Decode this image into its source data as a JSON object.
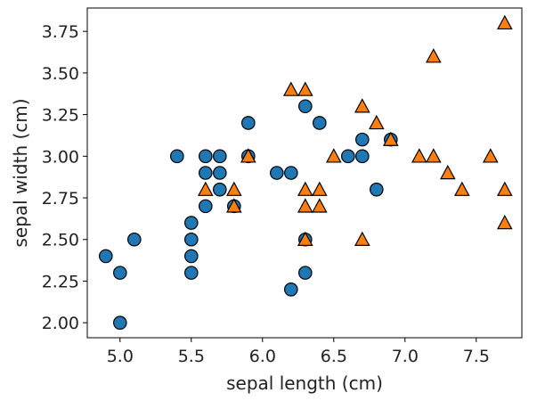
{
  "chart_data": {
    "type": "scatter",
    "title": "",
    "xlabel": "sepal length (cm)",
    "ylabel": "sepal width (cm)",
    "xlim": [
      4.77,
      7.82
    ],
    "ylim": [
      1.91,
      3.89
    ],
    "grid": false,
    "legend": "none",
    "x_ticks": [
      5.0,
      5.5,
      6.0,
      6.5,
      7.0,
      7.5
    ],
    "x_tick_labels": [
      "5.0",
      "5.5",
      "6.0",
      "6.5",
      "7.0",
      "7.5"
    ],
    "y_ticks": [
      2.0,
      2.25,
      2.5,
      2.75,
      3.0,
      3.25,
      3.5,
      3.75
    ],
    "y_tick_labels": [
      "2.00",
      "2.25",
      "2.50",
      "2.75",
      "3.00",
      "3.25",
      "3.50",
      "3.75"
    ],
    "series": [
      {
        "marker": "circle",
        "color": "#1f77b4",
        "points": [
          [
            4.9,
            2.4
          ],
          [
            5.0,
            2.3
          ],
          [
            5.0,
            2.0
          ],
          [
            5.1,
            2.5
          ],
          [
            5.4,
            3.0
          ],
          [
            5.5,
            2.6
          ],
          [
            5.5,
            2.5
          ],
          [
            5.5,
            2.4
          ],
          [
            5.5,
            2.3
          ],
          [
            5.6,
            3.0
          ],
          [
            5.6,
            2.9
          ],
          [
            5.6,
            2.7
          ],
          [
            5.7,
            3.0
          ],
          [
            5.7,
            2.9
          ],
          [
            5.7,
            2.8
          ],
          [
            5.8,
            2.7
          ],
          [
            5.9,
            3.2
          ],
          [
            5.9,
            3.0
          ],
          [
            6.1,
            2.9
          ],
          [
            6.2,
            2.9
          ],
          [
            6.2,
            2.2
          ],
          [
            6.3,
            3.3
          ],
          [
            6.3,
            2.5
          ],
          [
            6.3,
            2.3
          ],
          [
            6.4,
            3.2
          ],
          [
            6.6,
            3.0
          ],
          [
            6.7,
            3.1
          ],
          [
            6.7,
            3.0
          ],
          [
            6.8,
            2.8
          ],
          [
            6.9,
            3.1
          ]
        ]
      },
      {
        "marker": "triangle",
        "color": "#ff7f0e",
        "points": [
          [
            5.6,
            2.8
          ],
          [
            5.8,
            2.8
          ],
          [
            5.8,
            2.7
          ],
          [
            5.9,
            3.0
          ],
          [
            6.2,
            3.4
          ],
          [
            6.3,
            3.4
          ],
          [
            6.3,
            2.8
          ],
          [
            6.3,
            2.7
          ],
          [
            6.3,
            2.5
          ],
          [
            6.4,
            2.8
          ],
          [
            6.4,
            2.7
          ],
          [
            6.5,
            3.0
          ],
          [
            6.7,
            3.3
          ],
          [
            6.7,
            2.5
          ],
          [
            6.8,
            3.2
          ],
          [
            6.9,
            3.1
          ],
          [
            7.1,
            3.0
          ],
          [
            7.2,
            3.6
          ],
          [
            7.2,
            3.0
          ],
          [
            7.3,
            2.9
          ],
          [
            7.4,
            2.8
          ],
          [
            7.6,
            3.0
          ],
          [
            7.7,
            3.8
          ],
          [
            7.7,
            2.8
          ],
          [
            7.7,
            2.6
          ]
        ]
      }
    ]
  }
}
